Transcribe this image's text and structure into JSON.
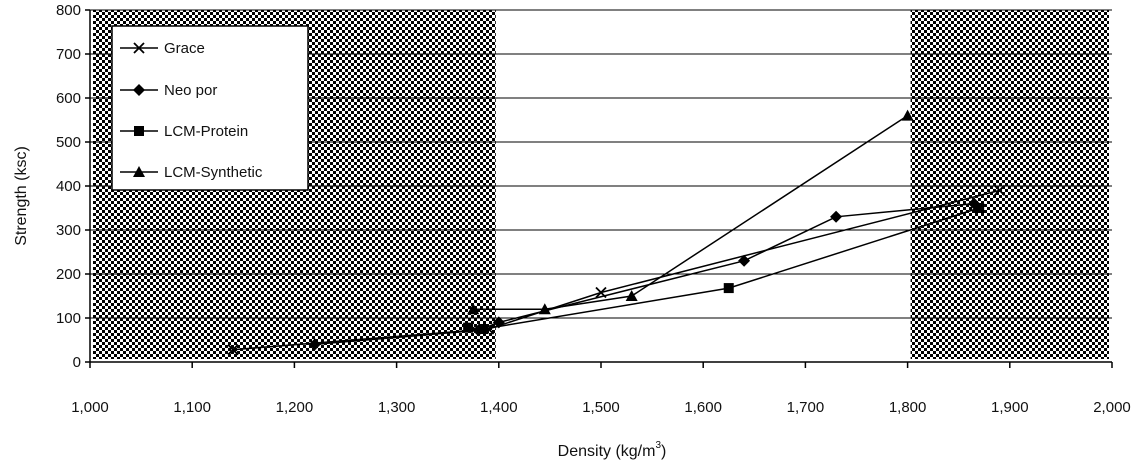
{
  "chart_data": {
    "type": "line",
    "xlabel": "Density (kg/m",
    "xlabel_sup": "3",
    "xlabel_close": ")",
    "ylabel": "Strength (ksc)",
    "xlim": [
      1000,
      2000
    ],
    "ylim": [
      0,
      800
    ],
    "x_ticks": [
      1000,
      1100,
      1200,
      1300,
      1400,
      1500,
      1600,
      1700,
      1800,
      1900,
      2000
    ],
    "x_tick_labels": [
      "1,000",
      "1,100",
      "1,200",
      "1,300",
      "1,400",
      "1,500",
      "1,600",
      "1,700",
      "1,800",
      "1,900",
      "2,000"
    ],
    "y_ticks": [
      0,
      100,
      200,
      300,
      400,
      500,
      600,
      700,
      800
    ],
    "y_tick_labels": [
      "0",
      "100",
      "200",
      "300",
      "400",
      "500",
      "600",
      "700",
      "800"
    ],
    "grid": "horizontal",
    "legend_position": "top-left",
    "shaded_x_ranges": [
      [
        1000,
        1400
      ],
      [
        1800,
        2000
      ]
    ],
    "series": [
      {
        "name": "Grace",
        "marker": "x",
        "points": [
          [
            1140,
            28
          ],
          [
            1390,
            75
          ],
          [
            1500,
            158
          ],
          [
            1890,
            390
          ]
        ]
      },
      {
        "name": "Neo por",
        "marker": "diamond",
        "points": [
          [
            1220,
            40
          ],
          [
            1380,
            72
          ],
          [
            1400,
            90
          ],
          [
            1640,
            230
          ],
          [
            1730,
            330
          ],
          [
            1865,
            360
          ]
        ]
      },
      {
        "name": "LCM-Protein",
        "marker": "square",
        "points": [
          [
            1370,
            78
          ],
          [
            1385,
            75
          ],
          [
            1625,
            168
          ],
          [
            1870,
            350
          ]
        ]
      },
      {
        "name": "LCM-Synthetic",
        "marker": "triangle",
        "points": [
          [
            1375,
            120
          ],
          [
            1445,
            120
          ],
          [
            1530,
            150
          ],
          [
            1800,
            560
          ]
        ]
      }
    ]
  }
}
